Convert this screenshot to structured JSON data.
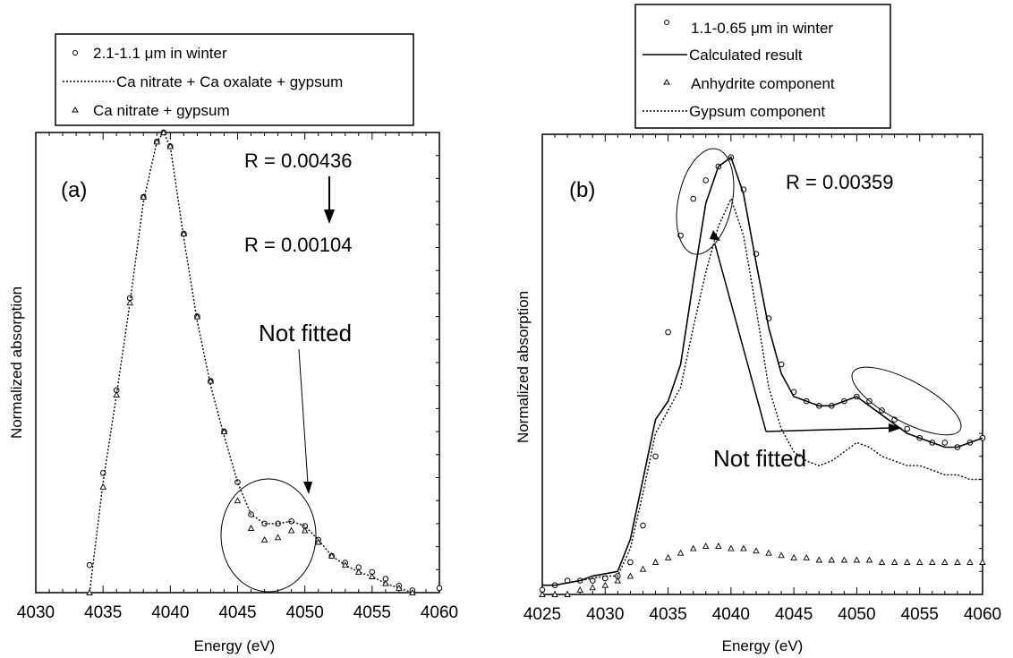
{
  "chart_data": [
    {
      "type": "scatter",
      "panel_label": "(a)",
      "xlabel": "Energy (eV)",
      "ylabel": "Normalized absorption",
      "xlim": [
        4030,
        4060
      ],
      "ylim": [
        0,
        1
      ],
      "xticks": [
        "4030",
        "4035",
        "4040",
        "4045",
        "4050",
        "4055",
        "4060"
      ],
      "legend_position": "above plot",
      "legend": [
        {
          "label": "2.1-1.1 μm in winter",
          "marker": "circle"
        },
        {
          "label": "Ca nitrate + Ca oxalate + gypsum",
          "marker": "dotted-line"
        },
        {
          "label": "Ca nitrate + gypsum",
          "marker": "triangle"
        }
      ],
      "annotations": {
        "r_before": "R = 0.00436",
        "r_after": "R = 0.00104",
        "not_fitted": "Not fitted"
      },
      "series": [
        {
          "name": "2.1-1.1 μm in winter",
          "x": [
            4034,
            4035,
            4036,
            4037,
            4038,
            4039,
            4039.5,
            4040,
            4041,
            4042,
            4043,
            4044,
            4045,
            4046,
            4047,
            4048,
            4049,
            4050,
            4051,
            4052,
            4053,
            4054,
            4055,
            4056,
            4057,
            4058,
            4060
          ],
          "y": [
            0.06,
            0.26,
            0.44,
            0.64,
            0.86,
            0.98,
            1.0,
            0.97,
            0.78,
            0.6,
            0.46,
            0.35,
            0.24,
            0.17,
            0.15,
            0.15,
            0.155,
            0.145,
            0.115,
            0.08,
            0.065,
            0.055,
            0.045,
            0.03,
            0.015,
            0.005,
            0.01
          ]
        },
        {
          "name": "Ca nitrate + Ca oxalate + gypsum",
          "x": [
            4034,
            4035,
            4036,
            4037,
            4038,
            4039,
            4039.5,
            4040,
            4041,
            4042,
            4043,
            4044,
            4045,
            4046,
            4047,
            4048,
            4049,
            4050,
            4051,
            4052,
            4053,
            4054,
            4055,
            4056,
            4057,
            4058
          ],
          "y": [
            0.0,
            0.24,
            0.43,
            0.63,
            0.85,
            0.98,
            1.0,
            0.97,
            0.77,
            0.59,
            0.45,
            0.34,
            0.24,
            0.17,
            0.15,
            0.15,
            0.155,
            0.145,
            0.115,
            0.08,
            0.06,
            0.045,
            0.035,
            0.02,
            0.01,
            0.0
          ]
        },
        {
          "name": "Ca nitrate + gypsum",
          "x": [
            4034,
            4035,
            4036,
            4037,
            4038,
            4039,
            4039.5,
            4040,
            4041,
            4042,
            4043,
            4044,
            4045,
            4046,
            4047,
            4048,
            4049,
            4050,
            4051,
            4052,
            4053,
            4054,
            4055,
            4056,
            4057,
            4058
          ],
          "y": [
            0.0,
            0.23,
            0.43,
            0.63,
            0.86,
            0.98,
            1.0,
            0.97,
            0.78,
            0.6,
            0.46,
            0.35,
            0.2,
            0.14,
            0.115,
            0.12,
            0.135,
            0.135,
            0.11,
            0.08,
            0.06,
            0.045,
            0.035,
            0.02,
            0.01,
            0.0
          ]
        }
      ]
    },
    {
      "type": "scatter",
      "panel_label": "(b)",
      "xlabel": "Energy (eV)",
      "ylabel": "Normalized absorption",
      "xlim": [
        4025,
        4060
      ],
      "ylim": [
        0,
        1
      ],
      "xticks": [
        "4025",
        "4030",
        "4035",
        "4040",
        "4045",
        "4050",
        "4055",
        "4060"
      ],
      "legend_position": "above plot",
      "legend": [
        {
          "label": "1.1-0.65 μm in winter",
          "marker": "circle"
        },
        {
          "label": "Calculated result",
          "marker": "solid-line"
        },
        {
          "label": "Anhydrite component",
          "marker": "triangle"
        },
        {
          "label": "Gypsum component",
          "marker": "dotted-line"
        }
      ],
      "annotations": {
        "r_value": "R = 0.00359",
        "not_fitted": "Not fitted"
      },
      "series": [
        {
          "name": "1.1-0.65 μm in winter",
          "x": [
            4025,
            4026,
            4027,
            4028,
            4029,
            4030,
            4031,
            4032,
            4033,
            4034,
            4035,
            4036,
            4037,
            4038,
            4039,
            4040,
            4041,
            4042,
            4043,
            4044,
            4045,
            4046,
            4047,
            4048,
            4049,
            4050,
            4051,
            4052,
            4053,
            4054,
            4055,
            4056,
            4057,
            4058,
            4059,
            4060
          ],
          "y": [
            0.01,
            0.02,
            0.03,
            0.03,
            0.03,
            0.035,
            0.04,
            0.07,
            0.15,
            0.3,
            0.57,
            0.78,
            0.86,
            0.9,
            0.93,
            0.95,
            0.88,
            0.74,
            0.6,
            0.5,
            0.44,
            0.42,
            0.41,
            0.41,
            0.42,
            0.43,
            0.42,
            0.4,
            0.38,
            0.36,
            0.34,
            0.33,
            0.33,
            0.32,
            0.33,
            0.34
          ]
        },
        {
          "name": "Calculated result",
          "x": [
            4025,
            4026,
            4027,
            4028,
            4029,
            4030,
            4031,
            4032,
            4033,
            4034,
            4035,
            4036,
            4037,
            4038,
            4039,
            4040,
            4041,
            4042,
            4043,
            4044,
            4045,
            4046,
            4047,
            4048,
            4049,
            4050,
            4051,
            4052,
            4053,
            4054,
            4055,
            4056,
            4057,
            4058,
            4059,
            4060
          ],
          "y": [
            0.02,
            0.02,
            0.025,
            0.03,
            0.04,
            0.045,
            0.05,
            0.12,
            0.25,
            0.38,
            0.42,
            0.5,
            0.68,
            0.85,
            0.93,
            0.95,
            0.87,
            0.72,
            0.58,
            0.48,
            0.43,
            0.42,
            0.41,
            0.41,
            0.42,
            0.43,
            0.41,
            0.39,
            0.37,
            0.35,
            0.34,
            0.33,
            0.32,
            0.32,
            0.33,
            0.34
          ]
        },
        {
          "name": "Anhydrite component",
          "x": [
            4025,
            4026,
            4027,
            4028,
            4029,
            4030,
            4031,
            4032,
            4033,
            4034,
            4035,
            4036,
            4037,
            4038,
            4039,
            4040,
            4041,
            4042,
            4043,
            4044,
            4045,
            4046,
            4047,
            4048,
            4049,
            4050,
            4051,
            4052,
            4053,
            4054,
            4055,
            4056,
            4057,
            4058,
            4059,
            4060
          ],
          "y": [
            0.0,
            0.0,
            0.0,
            0.01,
            0.015,
            0.02,
            0.03,
            0.04,
            0.055,
            0.07,
            0.08,
            0.09,
            0.1,
            0.105,
            0.105,
            0.1,
            0.1,
            0.095,
            0.09,
            0.085,
            0.08,
            0.08,
            0.075,
            0.075,
            0.075,
            0.075,
            0.075,
            0.07,
            0.07,
            0.07,
            0.07,
            0.07,
            0.07,
            0.07,
            0.07,
            0.07
          ]
        },
        {
          "name": "Gypsum component",
          "x": [
            4025,
            4026,
            4027,
            4028,
            4029,
            4030,
            4031,
            4032,
            4033,
            4034,
            4035,
            4036,
            4037,
            4038,
            4039,
            4040,
            4041,
            4042,
            4043,
            4044,
            4045,
            4046,
            4047,
            4048,
            4049,
            4050,
            4051,
            4052,
            4053,
            4054,
            4055,
            4056,
            4057,
            4058,
            4059,
            4060
          ],
          "y": [
            0.02,
            0.02,
            0.025,
            0.03,
            0.035,
            0.04,
            0.04,
            0.1,
            0.22,
            0.35,
            0.4,
            0.45,
            0.58,
            0.7,
            0.8,
            0.86,
            0.78,
            0.62,
            0.45,
            0.36,
            0.31,
            0.29,
            0.28,
            0.29,
            0.31,
            0.33,
            0.32,
            0.3,
            0.29,
            0.28,
            0.28,
            0.27,
            0.26,
            0.26,
            0.25,
            0.25
          ]
        }
      ]
    }
  ]
}
